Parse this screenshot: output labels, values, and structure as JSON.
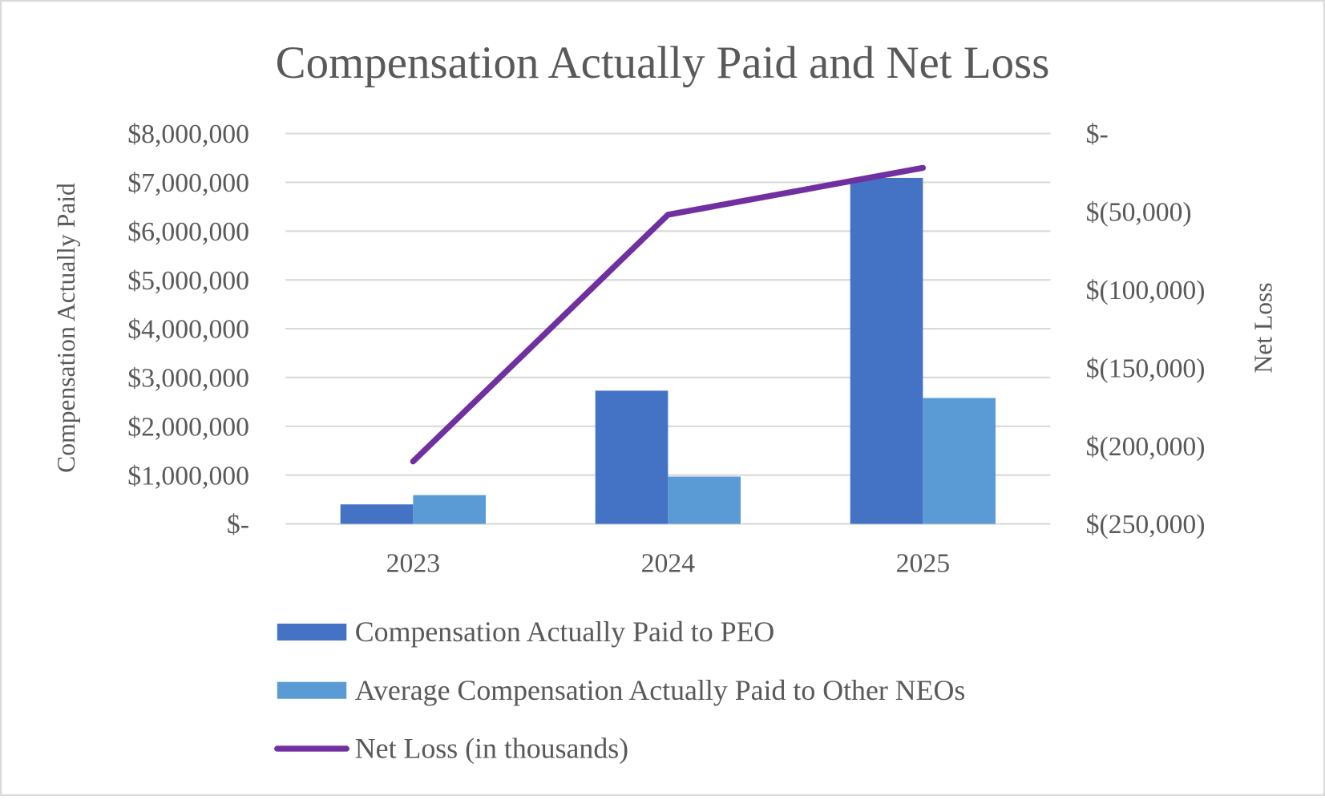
{
  "chart_data": {
    "type": "bar",
    "title": "Compensation Actually Paid and Net Loss",
    "categories": [
      "2023",
      "2024",
      "2025"
    ],
    "ylabel": "Compensation Actually Paid",
    "y2label": "Net Loss",
    "ylim": [
      0,
      8000000
    ],
    "y2lim": [
      -250000,
      0
    ],
    "yticks": [
      "$-",
      "$1,000,000",
      "$2,000,000",
      "$3,000,000",
      "$4,000,000",
      "$5,000,000",
      "$6,000,000",
      "$7,000,000",
      "$8,000,000"
    ],
    "y2ticks": [
      "$(250,000)",
      "$(200,000)",
      "$(150,000)",
      "$(100,000)",
      "$(50,000)",
      "$-"
    ],
    "grid": true,
    "legend_position": "bottom",
    "series": [
      {
        "name": "Compensation Actually Paid to PEO",
        "type": "bar",
        "axis": "left",
        "color": "#4472C4",
        "values": [
          400000,
          2730000,
          7090000
        ]
      },
      {
        "name": "Average Compensation Actually Paid to Other NEOs",
        "type": "bar",
        "axis": "left",
        "color": "#5B9BD5",
        "values": [
          590000,
          970000,
          2580000
        ]
      },
      {
        "name": "Net Loss (in thousands)",
        "type": "line",
        "axis": "right",
        "color": "#7030A0",
        "values": [
          -210000,
          -52000,
          -22000
        ]
      }
    ]
  }
}
